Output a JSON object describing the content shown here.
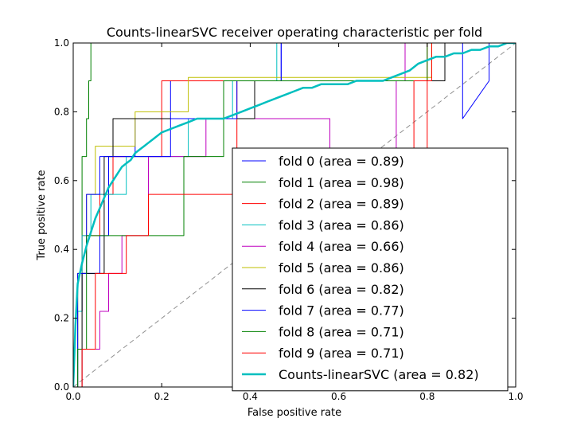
{
  "chart_data": {
    "type": "line",
    "title": "Counts-linearSVC receiver operating characteristic per fold",
    "xlabel": "False positive rate",
    "ylabel": "True positive rate",
    "xlim": [
      0,
      1
    ],
    "ylim": [
      0,
      1
    ],
    "xticks": [
      "0.0",
      "0.2",
      "0.4",
      "0.6",
      "0.8",
      "1.0"
    ],
    "yticks": [
      "0.0",
      "0.2",
      "0.4",
      "0.6",
      "0.8",
      "1.0"
    ],
    "grid": false,
    "legend_position": "lower-right",
    "chance_line": {
      "x": [
        0,
        1
      ],
      "y": [
        0,
        1
      ],
      "color": "#909090",
      "style": "dashed"
    },
    "series": [
      {
        "name": "fold 0 (area = 0.89)",
        "color": "#0000ff",
        "width": 1,
        "x": [
          0,
          0.01,
          0.01,
          0.02,
          0.02,
          0.06,
          0.06,
          0.08,
          0.08,
          0.14,
          0.14,
          0.22,
          0.22,
          0.47,
          0.47,
          0.88,
          0.88,
          0.94,
          0.94,
          1
        ],
        "y": [
          0,
          0,
          0.22,
          0.22,
          0.33,
          0.33,
          0.44,
          0.44,
          0.67,
          0.67,
          0.78,
          0.78,
          0.89,
          0.89,
          1,
          1,
          0.78,
          0.89,
          1,
          1
        ]
      },
      {
        "name": "fold 1 (area = 0.98)",
        "color": "#008000",
        "width": 1,
        "x": [
          0,
          0.01,
          0.01,
          0.02,
          0.02,
          0.03,
          0.03,
          0.035,
          0.035,
          0.04,
          0.04,
          1
        ],
        "y": [
          0,
          0,
          0.33,
          0.33,
          0.67,
          0.67,
          0.78,
          0.78,
          0.89,
          0.89,
          1,
          1
        ]
      },
      {
        "name": "fold 2 (area = 0.89)",
        "color": "#ff0000",
        "width": 1,
        "x": [
          0,
          0.01,
          0.01,
          0.02,
          0.02,
          0.06,
          0.06,
          0.09,
          0.09,
          0.2,
          0.2,
          0.37,
          0.37,
          0.8,
          0.8,
          1
        ],
        "y": [
          0,
          0,
          0.22,
          0.22,
          0.44,
          0.44,
          0.56,
          0.56,
          0.67,
          0.67,
          0.89,
          0.89,
          0.56,
          0.56,
          1,
          1
        ]
      },
      {
        "name": "fold 3 (area = 0.86)",
        "color": "#00bfbf",
        "width": 1,
        "x": [
          0,
          0.01,
          0.01,
          0.02,
          0.02,
          0.04,
          0.04,
          0.12,
          0.12,
          0.26,
          0.26,
          0.36,
          0.36,
          0.46,
          0.46,
          1
        ],
        "y": [
          0,
          0,
          0.22,
          0.22,
          0.44,
          0.44,
          0.56,
          0.56,
          0.67,
          0.67,
          0.78,
          0.78,
          0.89,
          0.89,
          1,
          1
        ]
      },
      {
        "name": "fold 4 (area = 0.66)",
        "color": "#bf00bf",
        "width": 1,
        "x": [
          0,
          0.02,
          0.02,
          0.06,
          0.06,
          0.08,
          0.08,
          0.11,
          0.11,
          0.17,
          0.17,
          0.3,
          0.3,
          0.58,
          0.58,
          0.73,
          0.73,
          0.75,
          0.75,
          0.77,
          0.77,
          1
        ],
        "y": [
          0,
          0,
          0.11,
          0.11,
          0.22,
          0.22,
          0.33,
          0.33,
          0.44,
          0.44,
          0.67,
          0.67,
          0.78,
          0.78,
          0.67,
          0.67,
          0.89,
          0.89,
          1,
          1,
          1,
          1
        ]
      },
      {
        "name": "fold 5 (area = 0.86)",
        "color": "#bfbf00",
        "width": 1,
        "x": [
          0,
          0.01,
          0.01,
          0.03,
          0.03,
          0.05,
          0.05,
          0.14,
          0.14,
          0.26,
          0.26,
          0.4,
          0.4,
          0.73,
          0.73,
          0.81,
          0.81,
          1
        ],
        "y": [
          0,
          0,
          0.33,
          0.33,
          0.56,
          0.56,
          0.7,
          0.7,
          0.8,
          0.8,
          0.9,
          0.9,
          0.9,
          0.9,
          0.9,
          0.9,
          1,
          1
        ]
      },
      {
        "name": "fold 6 (area = 0.82)",
        "color": "#000000",
        "width": 1,
        "x": [
          0,
          0.02,
          0.02,
          0.07,
          0.07,
          0.09,
          0.09,
          0.41,
          0.41,
          0.84,
          0.84,
          1
        ],
        "y": [
          0,
          0,
          0.33,
          0.33,
          0.67,
          0.67,
          0.78,
          0.78,
          0.89,
          0.89,
          1,
          1
        ]
      },
      {
        "name": "fold 7 (area = 0.77)",
        "color": "#0000ff",
        "width": 1,
        "x": [
          0,
          0.01,
          0.01,
          0.03,
          0.03,
          0.06,
          0.06,
          0.22,
          0.22,
          0.37,
          0.37,
          0.47,
          0.47,
          1
        ],
        "y": [
          0,
          0,
          0.33,
          0.33,
          0.56,
          0.56,
          0.67,
          0.67,
          0.78,
          0.78,
          0.89,
          0.89,
          1,
          1
        ]
      },
      {
        "name": "fold 8 (area = 0.71)",
        "color": "#008000",
        "width": 1,
        "x": [
          0,
          0.01,
          0.01,
          0.03,
          0.03,
          0.09,
          0.09,
          0.25,
          0.25,
          0.34,
          0.34,
          0.77,
          0.77,
          0.8,
          0.8,
          1
        ],
        "y": [
          0,
          0,
          0.11,
          0.11,
          0.44,
          0.44,
          0.44,
          0.44,
          0.67,
          0.67,
          0.89,
          0.89,
          0.89,
          0.89,
          1,
          1
        ]
      },
      {
        "name": "fold 9 (area = 0.71)",
        "color": "#ff0000",
        "width": 1,
        "x": [
          0,
          0.02,
          0.02,
          0.05,
          0.05,
          0.12,
          0.12,
          0.17,
          0.17,
          0.32,
          0.32,
          0.44,
          0.44,
          0.77,
          0.77,
          0.81,
          0.81,
          1
        ],
        "y": [
          0,
          0,
          0.11,
          0.11,
          0.33,
          0.33,
          0.44,
          0.44,
          0.56,
          0.56,
          0.56,
          0.56,
          0.67,
          0.67,
          0.89,
          0.89,
          1,
          1
        ]
      },
      {
        "name": "Counts-linearSVC (area = 0.82)",
        "color": "#00bfbf",
        "width": 2.5,
        "x": [
          0,
          0.005,
          0.01,
          0.02,
          0.03,
          0.04,
          0.05,
          0.06,
          0.07,
          0.08,
          0.09,
          0.1,
          0.11,
          0.12,
          0.13,
          0.14,
          0.15,
          0.16,
          0.17,
          0.18,
          0.2,
          0.22,
          0.24,
          0.26,
          0.28,
          0.3,
          0.32,
          0.34,
          0.36,
          0.38,
          0.4,
          0.42,
          0.44,
          0.46,
          0.48,
          0.5,
          0.52,
          0.54,
          0.56,
          0.58,
          0.6,
          0.62,
          0.64,
          0.66,
          0.68,
          0.7,
          0.72,
          0.74,
          0.76,
          0.78,
          0.8,
          0.82,
          0.84,
          0.86,
          0.88,
          0.9,
          0.92,
          0.94,
          0.96,
          0.98,
          1
        ],
        "y": [
          0,
          0.18,
          0.3,
          0.36,
          0.41,
          0.45,
          0.49,
          0.52,
          0.55,
          0.58,
          0.6,
          0.62,
          0.64,
          0.65,
          0.66,
          0.68,
          0.69,
          0.7,
          0.71,
          0.72,
          0.74,
          0.75,
          0.76,
          0.77,
          0.78,
          0.78,
          0.78,
          0.78,
          0.79,
          0.8,
          0.81,
          0.82,
          0.83,
          0.84,
          0.85,
          0.86,
          0.87,
          0.87,
          0.88,
          0.88,
          0.88,
          0.88,
          0.89,
          0.89,
          0.89,
          0.89,
          0.9,
          0.91,
          0.92,
          0.94,
          0.95,
          0.96,
          0.96,
          0.97,
          0.97,
          0.98,
          0.98,
          0.99,
          0.99,
          1,
          1
        ]
      }
    ]
  }
}
